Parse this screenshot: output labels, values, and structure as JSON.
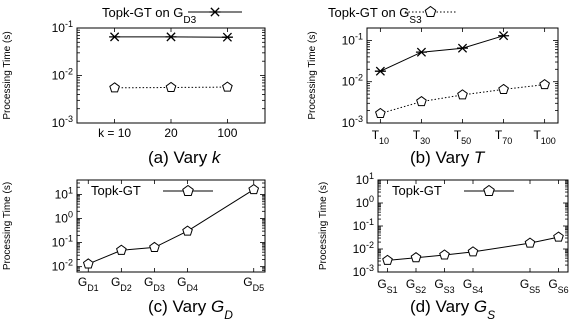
{
  "legend": [
    {
      "label": "Topk-GT on G",
      "sub": "D3",
      "marker": "star",
      "dash": "solid"
    },
    {
      "label": "Topk-GT on G",
      "sub": "S3",
      "marker": "pentagon",
      "dash": "dotted"
    }
  ],
  "chart_data": [
    {
      "type": "line",
      "caption": {
        "prefix": "(a) Vary ",
        "var": "k",
        "sub": ""
      },
      "ylabel": "Processing Time (s)",
      "yscale": "log",
      "ylim": [
        0.001,
        0.1
      ],
      "yticks": [
        {
          "base": "10",
          "exp": "-1",
          "value": 0.1
        },
        {
          "base": "10",
          "exp": "-2",
          "value": 0.01
        },
        {
          "base": "10",
          "exp": "-3",
          "value": 0.001
        }
      ],
      "categories": [
        {
          "label": "k = 10"
        },
        {
          "label": "20"
        },
        {
          "label": "100"
        }
      ],
      "series": [
        {
          "name": "Topk-GT on G_D3",
          "marker": "star",
          "dash": "solid",
          "values": [
            0.065,
            0.065,
            0.064
          ]
        },
        {
          "name": "Topk-GT on G_S3",
          "marker": "pentagon",
          "dash": "dotted",
          "values": [
            0.0055,
            0.0056,
            0.0057
          ]
        }
      ]
    },
    {
      "type": "line",
      "caption": {
        "prefix": "(b) Vary ",
        "var": "T",
        "sub": ""
      },
      "ylabel": "Processing Time (s)",
      "yscale": "log",
      "ylim": [
        0.001,
        0.2
      ],
      "yticks": [
        {
          "base": "10",
          "exp": "-1",
          "value": 0.1
        },
        {
          "base": "10",
          "exp": "-2",
          "value": 0.01
        },
        {
          "base": "10",
          "exp": "-3",
          "value": 0.001
        }
      ],
      "categories": [
        {
          "label": "T",
          "sub": "10"
        },
        {
          "label": "T",
          "sub": "30"
        },
        {
          "label": "T",
          "sub": "50"
        },
        {
          "label": "T",
          "sub": "70"
        },
        {
          "label": "T",
          "sub": "100"
        }
      ],
      "series": [
        {
          "name": "Topk-GT on G_D3",
          "marker": "star",
          "dash": "solid",
          "values": [
            0.018,
            0.052,
            0.065,
            0.13,
            null
          ]
        },
        {
          "name": "Topk-GT on G_S3",
          "marker": "pentagon",
          "dash": "dotted",
          "values": [
            0.0017,
            0.0033,
            0.0048,
            0.0065,
            0.0085
          ]
        }
      ]
    },
    {
      "type": "line",
      "caption": {
        "prefix": "(c) Vary ",
        "var": "G",
        "sub": "D"
      },
      "ylabel": "Processing Time (s)",
      "yscale": "log",
      "ylim": [
        0.006,
        40
      ],
      "yticks": [
        {
          "base": "10",
          "exp": "1",
          "value": 10
        },
        {
          "base": "10",
          "exp": "0",
          "value": 1
        },
        {
          "base": "10",
          "exp": "-1",
          "value": 0.1
        },
        {
          "base": "10",
          "exp": "-2",
          "value": 0.01
        }
      ],
      "categories": [
        {
          "label": "G",
          "sub": "D1"
        },
        {
          "label": "G",
          "sub": "D2"
        },
        {
          "label": "G",
          "sub": "D3"
        },
        {
          "label": "G",
          "sub": "D4"
        },
        {
          "label": "G",
          "sub": "D5"
        }
      ],
      "x": [
        1,
        2,
        3,
        4,
        6
      ],
      "legend": "Topk-GT",
      "series": [
        {
          "name": "Topk-GT",
          "marker": "pentagon",
          "dash": "solid",
          "values": [
            0.013,
            0.048,
            0.063,
            0.3,
            16
          ]
        }
      ]
    },
    {
      "type": "line",
      "caption": {
        "prefix": "(d) Vary ",
        "var": "G",
        "sub": "S"
      },
      "ylabel": "Processing Time (s)",
      "yscale": "log",
      "ylim": [
        0.001,
        10
      ],
      "yticks": [
        {
          "base": "10",
          "exp": "1",
          "value": 10
        },
        {
          "base": "10",
          "exp": "0",
          "value": 1
        },
        {
          "base": "10",
          "exp": "-1",
          "value": 0.1
        },
        {
          "base": "10",
          "exp": "-2",
          "value": 0.01
        },
        {
          "base": "10",
          "exp": "-3",
          "value": 0.001
        }
      ],
      "categories": [
        {
          "label": "G",
          "sub": "S1"
        },
        {
          "label": "G",
          "sub": "S2"
        },
        {
          "label": "G",
          "sub": "S3"
        },
        {
          "label": "G",
          "sub": "S4"
        },
        {
          "label": "G",
          "sub": "S5"
        },
        {
          "label": "G",
          "sub": "S6"
        }
      ],
      "x": [
        1,
        2,
        3,
        4,
        6,
        7
      ],
      "legend": "Topk-GT",
      "series": [
        {
          "name": "Topk-GT",
          "marker": "pentagon",
          "dash": "solid",
          "values": [
            0.0032,
            0.0042,
            0.0055,
            0.0075,
            0.018,
            0.033
          ]
        }
      ]
    }
  ]
}
